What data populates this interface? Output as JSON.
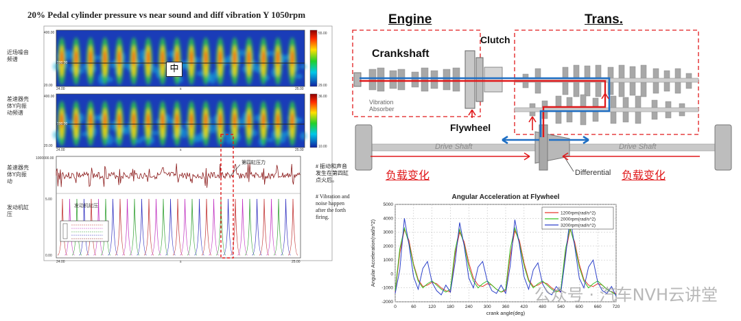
{
  "left_panel": {
    "title": "20% Pedal cylinder pressure vs near sound and diff vibration Y 1050rpm",
    "plots": [
      {
        "ylabel": "近场噪音频谱",
        "ytick_top": "400.00",
        "ytick_bottom": "20.00",
        "xtick_left": "24.00",
        "xtick_mid": "s",
        "xtick_right": "25.00",
        "cbar_top": "55.00",
        "cbar_bottom": "29.00",
        "line_value": "100.00"
      },
      {
        "ylabel": "差速器壳体Y向振动频谱",
        "ytick_top": "400.00",
        "ytick_bottom": "20.00",
        "xtick_left": "24.00",
        "xtick_mid": "s",
        "xtick_right": "25.00",
        "cbar_top": "36.00",
        "cbar_bottom": "10.00",
        "line_value": "100.00"
      },
      {
        "ylabel": "差速器壳体Y向振动",
        "ytick_top": "1000000.00",
        "ytick_bottom": "0.00",
        "annotation": "第四缸压力"
      },
      {
        "ylabel": "发动机缸压",
        "ytick_top": "5.00",
        "ytick_bottom": "0.00",
        "xtick_left": "24.00",
        "xtick_mid": "s",
        "xtick_right": "25.00",
        "inner_label": "发动机缸压"
      }
    ],
    "center_mark": "中",
    "note_cn": "# 振动和声音发生在第四缸点火后。",
    "note_en": "# Vibration and noise happen after the forth firing."
  },
  "diagram": {
    "engine_label": "Engine",
    "trans_label": "Trans.",
    "crankshaft_label": "Crankshaft",
    "clutch_label": "Clutch",
    "flywheel_label": "Flywheel",
    "vibration_absorber_label": "Vibration Absorber",
    "drive_shaft_left": "Drive Shaft",
    "drive_shaft_right": "Drive Shaft",
    "differential_label": "Differential",
    "load_change_left": "负载变化",
    "load_change_right": "负载变化",
    "colors": {
      "red": "#e0191b",
      "blue": "#1f6fc4",
      "gear": "#9a9a9a"
    }
  },
  "chart_data": {
    "type": "line",
    "title": "Angular Acceleration at Flywheel",
    "xlabel": "crank angle(deg)",
    "ylabel": "Angular Acceleration(rad/s^2)",
    "xlim": [
      0,
      720
    ],
    "ylim": [
      -2000,
      5000
    ],
    "xticks": [
      0,
      60,
      120,
      180,
      240,
      300,
      360,
      420,
      480,
      540,
      600,
      660,
      720
    ],
    "yticks": [
      -2000,
      -1000,
      0,
      1000,
      2000,
      3000,
      4000,
      5000
    ],
    "grid": true,
    "legend_position": "top-right",
    "x": [
      0,
      15,
      30,
      45,
      60,
      75,
      90,
      105,
      120,
      135,
      150,
      165,
      180,
      195,
      210,
      225,
      240,
      255,
      270,
      285,
      300,
      315,
      330,
      345,
      360,
      375,
      390,
      405,
      420,
      435,
      450,
      465,
      480,
      495,
      510,
      525,
      540,
      555,
      570,
      585,
      600,
      615,
      630,
      645,
      660,
      675,
      690,
      705,
      720
    ],
    "series": [
      {
        "name": "1200rpm(rad/s^2)",
        "color": "#e8382b",
        "values": [
          -1300,
          1500,
          3200,
          2400,
          700,
          -400,
          -900,
          -800,
          -600,
          -700,
          -1000,
          -1200,
          -1300,
          1400,
          3000,
          2300,
          800,
          -300,
          -800,
          -900,
          -700,
          -800,
          -1100,
          -1300,
          -1200,
          1300,
          3100,
          2400,
          800,
          -400,
          -900,
          -800,
          -600,
          -700,
          -1000,
          -1200,
          -1300,
          1500,
          3200,
          2300,
          700,
          -400,
          -800,
          -900,
          -700,
          -800,
          -1100,
          -1300,
          -1400
        ]
      },
      {
        "name": "2000rpm(rad/s^2)",
        "color": "#35c21f",
        "values": [
          -1200,
          1800,
          3300,
          2200,
          600,
          -500,
          -1000,
          -700,
          -500,
          -800,
          -1100,
          -1300,
          -1100,
          1700,
          3200,
          2100,
          500,
          -500,
          -1000,
          -700,
          -500,
          -800,
          -1100,
          -1300,
          -1100,
          1800,
          3300,
          2200,
          600,
          -500,
          -1000,
          -700,
          -500,
          -800,
          -1100,
          -1300,
          -1100,
          1800,
          3300,
          2100,
          500,
          -500,
          -1000,
          -700,
          -500,
          -800,
          -1100,
          -1300,
          -1500
        ]
      },
      {
        "name": "3200rpm(rad/s^2)",
        "color": "#2a3fc9",
        "values": [
          -1400,
          300,
          4000,
          2100,
          -200,
          -1100,
          400,
          900,
          -600,
          -1200,
          -1500,
          -800,
          -1300,
          800,
          3700,
          2000,
          -300,
          -1000,
          500,
          900,
          -500,
          -1200,
          -1400,
          -800,
          -1400,
          600,
          3900,
          2100,
          -200,
          -1100,
          300,
          800,
          -700,
          -1300,
          -1500,
          -900,
          -1300,
          1200,
          4100,
          2000,
          -300,
          -1000,
          500,
          1000,
          -600,
          -1200,
          -1400,
          -900,
          -1600
        ]
      }
    ]
  },
  "watermark": "公众号 · 汽车NVH云讲堂"
}
